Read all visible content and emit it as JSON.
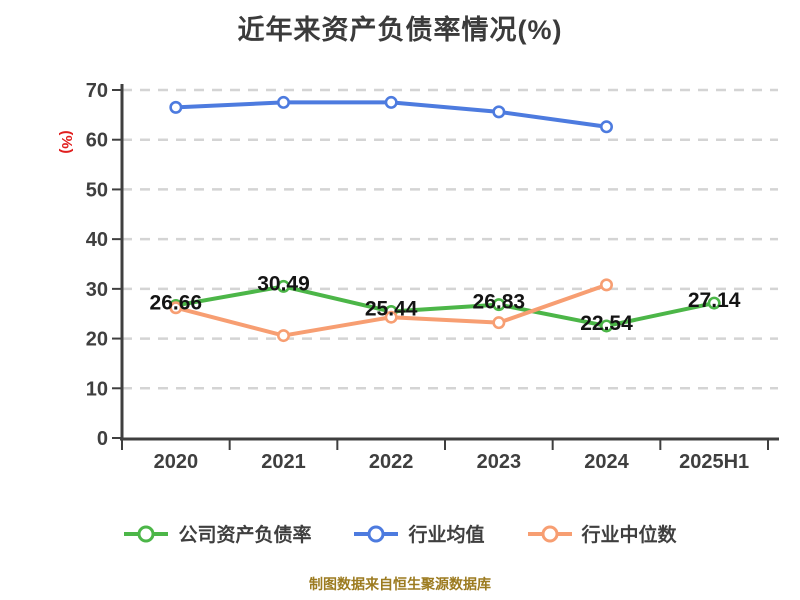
{
  "title": "近年来资产负债率情况(%)",
  "footer": "制图数据来自恒生聚源数据库",
  "chart_data": {
    "type": "line",
    "title": "近年来资产负债率情况(%)",
    "categories": [
      "2020",
      "2021",
      "2022",
      "2023",
      "2024",
      "2025H1"
    ],
    "series": [
      {
        "name": "公司资产负债率",
        "color": "#4cb648",
        "values": [
          26.66,
          30.49,
          25.44,
          26.83,
          22.54,
          27.14
        ],
        "data_labels": true
      },
      {
        "name": "行业均值",
        "color": "#4d7bdf",
        "values": [
          66.5,
          67.5,
          67.5,
          65.6,
          62.6,
          null
        ],
        "data_labels": false
      },
      {
        "name": "行业中位数",
        "color": "#f79e72",
        "values": [
          26.2,
          20.6,
          24.3,
          23.2,
          30.8,
          null
        ],
        "data_labels": false
      }
    ],
    "xlabel": "",
    "ylabel": "(%)",
    "ylim": [
      0,
      70
    ],
    "yticks": [
      0,
      10,
      20,
      30,
      40,
      50,
      60,
      70
    ],
    "grid": true,
    "grid_style": "dashed-horizontal",
    "legend_position": "bottom",
    "marker": "circle-white-fill"
  },
  "styles": {
    "background": "#ffffff",
    "title_color": "#3b3b3b",
    "axis_color": "#3f3f3f",
    "tick_label_color": "#3f3f3f",
    "gridline_color": "#d4d4d4",
    "ylabel_color": "#e01e1e",
    "data_label_color": "#141414",
    "legend_text_color": "#3f3f3f",
    "footer_color": "#9c7b20"
  }
}
